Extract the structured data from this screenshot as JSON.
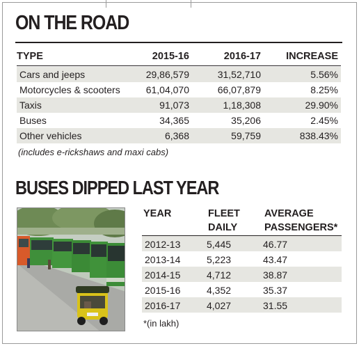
{
  "section1": {
    "title": "ON THE ROAD",
    "headers": {
      "type": "TYPE",
      "y1": "2015-16",
      "y2": "2016-17",
      "inc": "INCREASE"
    },
    "rows": [
      {
        "type": "Cars and jeeps",
        "y1": "29,86,579",
        "y2": "31,52,710",
        "inc": "5.56%"
      },
      {
        "type": "Motorcycles & scooters",
        "y1": "61,04,070",
        "y2": "66,07,879",
        "inc": "8.25%"
      },
      {
        "type": "Taxis",
        "y1": "91,073",
        "y2": "1,18,308",
        "inc": "29.90%"
      },
      {
        "type": "Buses",
        "y1": "34,365",
        "y2": "35,206",
        "inc": "2.45%"
      },
      {
        "type": "Other vehicles",
        "y1": "6,368",
        "y2": "59,759",
        "inc": "838.43%"
      }
    ],
    "note": "(includes e-rickshaws and maxi cabs)"
  },
  "section2": {
    "title": "BUSES DIPPED LAST YEAR",
    "headers": {
      "year": "YEAR",
      "fleet_1": "FLEET",
      "fleet_2": "DAILY",
      "avg_1": "AVERAGE",
      "avg_2": "PASSENGERS*"
    },
    "rows": [
      {
        "year": "2012-13",
        "fleet": "5,445",
        "passengers": "46.77"
      },
      {
        "year": "2013-14",
        "fleet": "5,223",
        "passengers": "43.47"
      },
      {
        "year": "2014-15",
        "fleet": "4,712",
        "passengers": "38.87"
      },
      {
        "year": "2015-16",
        "fleet": "4,352",
        "passengers": "35.37"
      },
      {
        "year": "2016-17",
        "fleet": "4,027",
        "passengers": "31.55"
      }
    ],
    "note": "*(in lakh)"
  },
  "colors": {
    "text": "#231f20",
    "row_shade": "#e6e6e1",
    "bus_green": "#3f8f3a",
    "auto_yellow": "#d9c21a"
  },
  "photo": {
    "icon": "street-bus-photo"
  }
}
